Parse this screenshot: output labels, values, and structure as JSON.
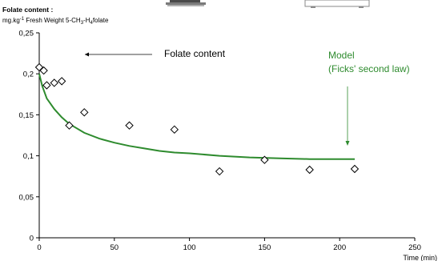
{
  "chart_data": {
    "type": "scatter",
    "ylabel_title": "Folate content :",
    "ylabel_unit": "mg.kg",
    "ylabel_unit_sup": "-1",
    "ylabel_unit_rest": " Fresh Weight 5-CH",
    "ylabel_sub1": "3",
    "ylabel_dash": "-H",
    "ylabel_sub2": "4",
    "ylabel_end": "folate",
    "xlabel": "Time (min)",
    "xlim": [
      0,
      250
    ],
    "ylim": [
      0,
      0.25
    ],
    "x_ticks": [
      "0",
      "50",
      "100",
      "150",
      "200",
      "250"
    ],
    "x_tick_values": [
      0,
      50,
      100,
      150,
      200,
      250
    ],
    "y_ticks": [
      "0",
      "0,05",
      "0,1",
      "0,15",
      "0,2",
      "0,25"
    ],
    "y_tick_values": [
      0,
      0.05,
      0.1,
      0.15,
      0.2,
      0.25
    ],
    "series": [
      {
        "name": "Folate content",
        "kind": "points",
        "marker": "diamond",
        "color": "#000000",
        "x": [
          0,
          3,
          5,
          10,
          15,
          20,
          30,
          60,
          90,
          120,
          150,
          180,
          210
        ],
        "y": [
          0.208,
          0.204,
          0.186,
          0.189,
          0.191,
          0.137,
          0.153,
          0.137,
          0.132,
          0.081,
          0.095,
          0.083,
          0.084
        ]
      },
      {
        "name": "Model",
        "name_line2": "(Ficks' second law)",
        "kind": "line",
        "color": "#2e8b2e",
        "x": [
          0,
          2,
          5,
          10,
          15,
          20,
          30,
          40,
          50,
          60,
          70,
          80,
          90,
          100,
          120,
          140,
          160,
          180,
          200,
          210
        ],
        "y": [
          0.2,
          0.185,
          0.17,
          0.157,
          0.147,
          0.139,
          0.128,
          0.121,
          0.116,
          0.112,
          0.109,
          0.106,
          0.104,
          0.103,
          0.1,
          0.098,
          0.097,
          0.096,
          0.096,
          0.096
        ]
      }
    ],
    "annotations": {
      "folate_label": "Folate content",
      "model_label": "Model",
      "model_sublabel": "(Ficks' second law)"
    }
  }
}
